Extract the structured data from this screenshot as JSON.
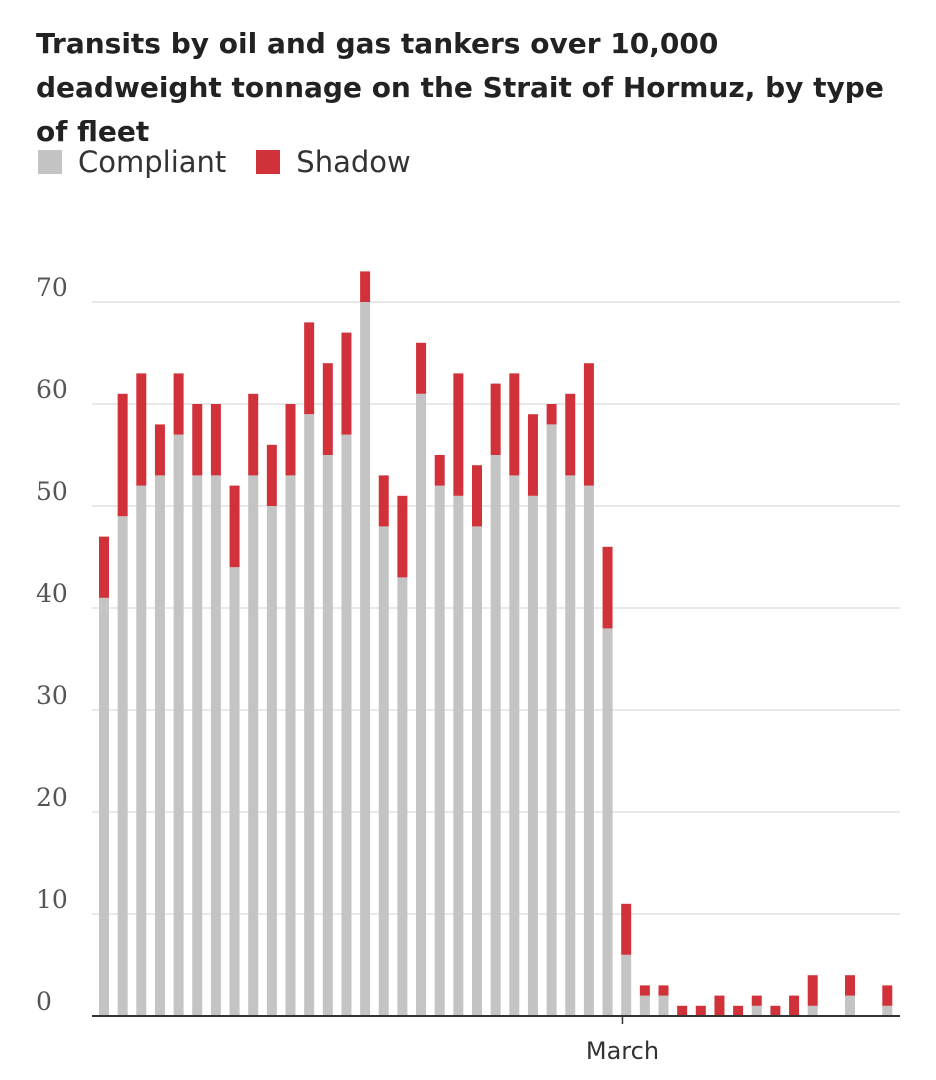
{
  "chart_data": {
    "type": "bar",
    "stacked": true,
    "title": "Transits by oil and gas tankers over 10,000 deadweight tonnage on the Strait of Hormuz, by type of fleet",
    "xlabel": "",
    "ylabel": "",
    "ylim": [
      0,
      73
    ],
    "yticks": [
      0,
      10,
      20,
      30,
      40,
      50,
      60,
      70
    ],
    "ytick_labels": [
      "0",
      "10",
      "20",
      "30",
      "40",
      "50",
      "60",
      "70"
    ],
    "x_tick_label": "March",
    "x_tick_index": 28,
    "grid": true,
    "legend_position": "top-left",
    "series": [
      {
        "name": "Compliant",
        "color": "#c4c4c4",
        "values": [
          41,
          49,
          52,
          53,
          57,
          53,
          53,
          44,
          53,
          50,
          53,
          59,
          55,
          57,
          70,
          48,
          43,
          61,
          52,
          51,
          48,
          55,
          53,
          51,
          58,
          53,
          52,
          38,
          6,
          2,
          2,
          0,
          0,
          0,
          0,
          1,
          0,
          0,
          1,
          0,
          2,
          0,
          1
        ]
      },
      {
        "name": "Shadow",
        "color": "#d1323a",
        "values": [
          6,
          12,
          11,
          5,
          6,
          7,
          7,
          8,
          8,
          6,
          7,
          9,
          9,
          10,
          3,
          5,
          8,
          5,
          3,
          12,
          6,
          7,
          10,
          8,
          2,
          8,
          12,
          8,
          5,
          1,
          1,
          1,
          1,
          2,
          1,
          1,
          1,
          2,
          3,
          0,
          2,
          0,
          2
        ]
      }
    ]
  }
}
